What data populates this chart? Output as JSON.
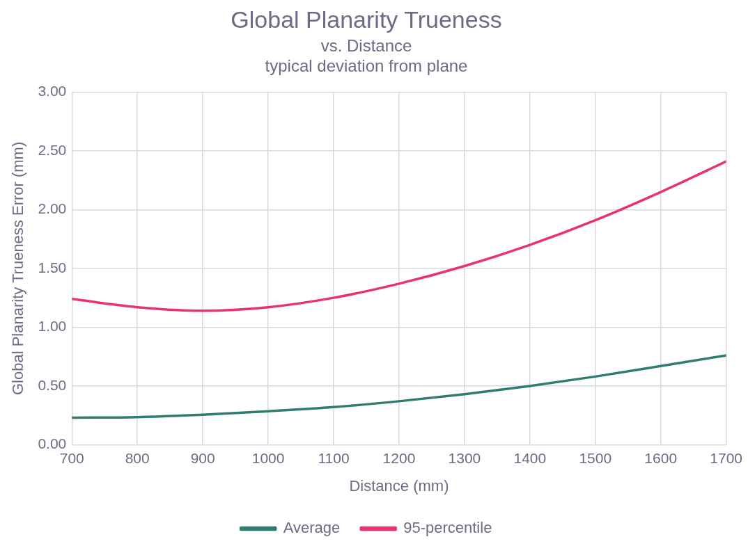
{
  "chart_data": {
    "type": "line",
    "title": "Global Planarity Trueness",
    "subtitle": "vs. Distance\ntypical deviation from plane",
    "xlabel": "Distance (mm)",
    "ylabel": "Global Planarity Trueness Error (mm)",
    "x": [
      700,
      800,
      900,
      1000,
      1100,
      1200,
      1300,
      1400,
      1500,
      1600,
      1700
    ],
    "series": [
      {
        "name": "Average",
        "color": "#2e7d6e",
        "values": [
          0.23,
          0.235,
          0.255,
          0.285,
          0.32,
          0.37,
          0.43,
          0.5,
          0.58,
          0.67,
          0.76
        ]
      },
      {
        "name": "95-percentile",
        "color": "#e8336e",
        "values": [
          1.24,
          1.17,
          1.14,
          1.17,
          1.25,
          1.37,
          1.52,
          1.7,
          1.91,
          2.15,
          2.41
        ]
      }
    ],
    "xlim": [
      700,
      1700
    ],
    "xticks": [
      700,
      800,
      900,
      1000,
      1100,
      1200,
      1300,
      1400,
      1500,
      1600,
      1700
    ],
    "ylim": [
      0,
      3
    ],
    "yticks": [
      {
        "value": 0,
        "label": "0.00"
      },
      {
        "value": 0.5,
        "label": "0.50"
      },
      {
        "value": 1,
        "label": "1.00"
      },
      {
        "value": 1.5,
        "label": "1.50"
      },
      {
        "value": 2,
        "label": "2.00"
      },
      {
        "value": 2.5,
        "label": "2.50"
      },
      {
        "value": 3,
        "label": "3.00"
      }
    ],
    "grid": true,
    "legend": "bottom",
    "marker": "none",
    "line_style": "solid"
  }
}
